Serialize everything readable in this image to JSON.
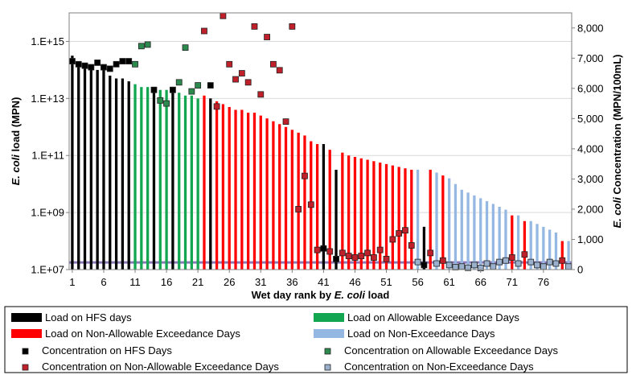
{
  "chart_data": {
    "type": "bar",
    "x_axis": {
      "label_parts": [
        "Wet day rank by ",
        "E. coli",
        " load"
      ],
      "range": [
        1,
        80
      ],
      "tick_labels": [
        "1",
        "6",
        "11",
        "16",
        "21",
        "26",
        "31",
        "36",
        "41",
        "46",
        "51",
        "56",
        "61",
        "66",
        "71",
        "76"
      ]
    },
    "y_left": {
      "label_parts": [
        "E. coli",
        " load (MPN)"
      ],
      "scale": "log",
      "range": [
        10000000,
        10000000000000000
      ],
      "tick_labels": [
        "1.E+07",
        "1.E+09",
        "1.E+11",
        "1.E+13",
        "1.E+15"
      ]
    },
    "y_right": {
      "label_parts": [
        "E. coli",
        " Concentration (MPN/100mL)"
      ],
      "range": [
        0,
        8500
      ],
      "tick_labels": [
        "0",
        "1,000",
        "2,000",
        "3,000",
        "4,000",
        "5,000",
        "6,000",
        "7,000",
        "8,000"
      ]
    },
    "reference_line": {
      "value": 235,
      "color": "#8c7ab8"
    },
    "colors": {
      "hfs": "#000000",
      "allowable": "#12a650",
      "nonallowable": "#ff0000",
      "nonexceedance": "#95b8e3",
      "conc_hfs": "#000000",
      "conc_allowable": "#2d8a4e",
      "conc_nonallowable": "#c0202a",
      "conc_nonexceedance": "#9ab0cc"
    },
    "load_series": [
      {
        "name": "Load on HFS days",
        "key": "hfs",
        "ranks": [
          1,
          2,
          3,
          4,
          5,
          6,
          7,
          8,
          9,
          10,
          14,
          17,
          23,
          41,
          43,
          57
        ],
        "exponents": [
          14.5,
          14.2,
          14.2,
          14.1,
          14.0,
          14.0,
          13.8,
          13.7,
          13.7,
          13.6,
          13.2,
          13.2,
          13.0,
          11.4,
          10.5,
          8.5
        ]
      },
      {
        "name": "Load on Allowable Exceedance Days",
        "key": "allowable",
        "ranks": [
          11,
          12,
          13,
          15,
          16,
          18,
          19,
          20,
          21
        ],
        "exponents": [
          13.5,
          13.4,
          13.4,
          13.3,
          13.3,
          13.2,
          13.1,
          13.1,
          13.0
        ]
      },
      {
        "name": "Load on Non-Allowable Exceedance Days",
        "key": "nonallowable",
        "ranks": [
          22,
          24,
          25,
          26,
          27,
          28,
          29,
          30,
          31,
          32,
          33,
          34,
          35,
          36,
          37,
          38,
          39,
          40,
          42,
          44,
          45,
          46,
          47,
          48,
          49,
          50,
          51,
          52,
          53,
          54,
          55,
          58,
          60,
          71,
          73,
          79
        ],
        "exponents": [
          13.1,
          12.9,
          12.8,
          12.7,
          12.6,
          12.6,
          12.5,
          12.5,
          12.4,
          12.3,
          12.2,
          12.1,
          12.0,
          11.9,
          11.8,
          11.7,
          11.5,
          11.4,
          11.2,
          11.1,
          11.0,
          10.95,
          10.9,
          10.85,
          10.8,
          10.75,
          10.7,
          10.65,
          10.6,
          10.55,
          10.5,
          10.5,
          10.3,
          8.9,
          8.7,
          8.0
        ]
      },
      {
        "name": "Load on Non-Exceedance Days",
        "key": "nonexceedance",
        "ranks": [
          56,
          59,
          61,
          62,
          63,
          64,
          65,
          66,
          67,
          68,
          69,
          70,
          72,
          74,
          75,
          76,
          77,
          78,
          80
        ],
        "exponents": [
          10.5,
          10.4,
          10.2,
          10.0,
          9.8,
          9.7,
          9.6,
          9.5,
          9.4,
          9.3,
          9.2,
          9.1,
          8.9,
          8.7,
          8.6,
          8.5,
          8.4,
          8.3,
          8.0
        ]
      }
    ],
    "concentration_series": [
      {
        "name": "Concentration on HFS Days",
        "key": "conc_hfs",
        "points": [
          [
            1,
            6900
          ],
          [
            2,
            6800
          ],
          [
            3,
            6750
          ],
          [
            4,
            6700
          ],
          [
            5,
            6850
          ],
          [
            6,
            6700
          ],
          [
            7,
            6650
          ],
          [
            8,
            6800
          ],
          [
            9,
            6900
          ],
          [
            10,
            6900
          ],
          [
            14,
            5950
          ],
          [
            17,
            5950
          ],
          [
            23,
            6100
          ],
          [
            41,
            700
          ],
          [
            43,
            350
          ],
          [
            57,
            150
          ]
        ]
      },
      {
        "name": "Concentration on Allowable Exceedance Days",
        "key": "conc_allowable",
        "points": [
          [
            11,
            6800
          ],
          [
            12,
            7400
          ],
          [
            13,
            7450
          ],
          [
            15,
            5600
          ],
          [
            16,
            5500
          ],
          [
            18,
            6200
          ],
          [
            19,
            7350
          ],
          [
            20,
            5900
          ],
          [
            21,
            6100
          ]
        ]
      },
      {
        "name": "Concentration on Non-Allowable Exceedance Days",
        "key": "conc_nonallowable",
        "points": [
          [
            22,
            7900
          ],
          [
            24,
            5400
          ],
          [
            25,
            8400
          ],
          [
            26,
            6800
          ],
          [
            27,
            6300
          ],
          [
            28,
            6500
          ],
          [
            29,
            6200
          ],
          [
            30,
            8050
          ],
          [
            31,
            5800
          ],
          [
            32,
            7700
          ],
          [
            33,
            6800
          ],
          [
            34,
            6600
          ],
          [
            35,
            4900
          ],
          [
            36,
            8050
          ],
          [
            37,
            2000
          ],
          [
            38,
            3100
          ],
          [
            39,
            2150
          ],
          [
            40,
            650
          ],
          [
            42,
            600
          ],
          [
            44,
            550
          ],
          [
            45,
            450
          ],
          [
            46,
            400
          ],
          [
            47,
            450
          ],
          [
            48,
            550
          ],
          [
            49,
            400
          ],
          [
            50,
            650
          ],
          [
            51,
            350
          ],
          [
            52,
            1000
          ],
          [
            53,
            1200
          ],
          [
            54,
            1300
          ],
          [
            55,
            800
          ],
          [
            58,
            550
          ],
          [
            60,
            300
          ],
          [
            71,
            400
          ],
          [
            73,
            500
          ],
          [
            79,
            300
          ]
        ]
      },
      {
        "name": "Concentration on Non-Exceedance Days",
        "key": "conc_nonexceedance",
        "points": [
          [
            56,
            250
          ],
          [
            59,
            200
          ],
          [
            61,
            150
          ],
          [
            62,
            80
          ],
          [
            63,
            100
          ],
          [
            64,
            60
          ],
          [
            65,
            150
          ],
          [
            66,
            50
          ],
          [
            67,
            200
          ],
          [
            68,
            100
          ],
          [
            69,
            250
          ],
          [
            70,
            300
          ],
          [
            72,
            200
          ],
          [
            74,
            250
          ],
          [
            75,
            150
          ],
          [
            76,
            100
          ],
          [
            77,
            250
          ],
          [
            78,
            200
          ],
          [
            80,
            100
          ]
        ]
      }
    ],
    "legend_placement": "bottom"
  }
}
